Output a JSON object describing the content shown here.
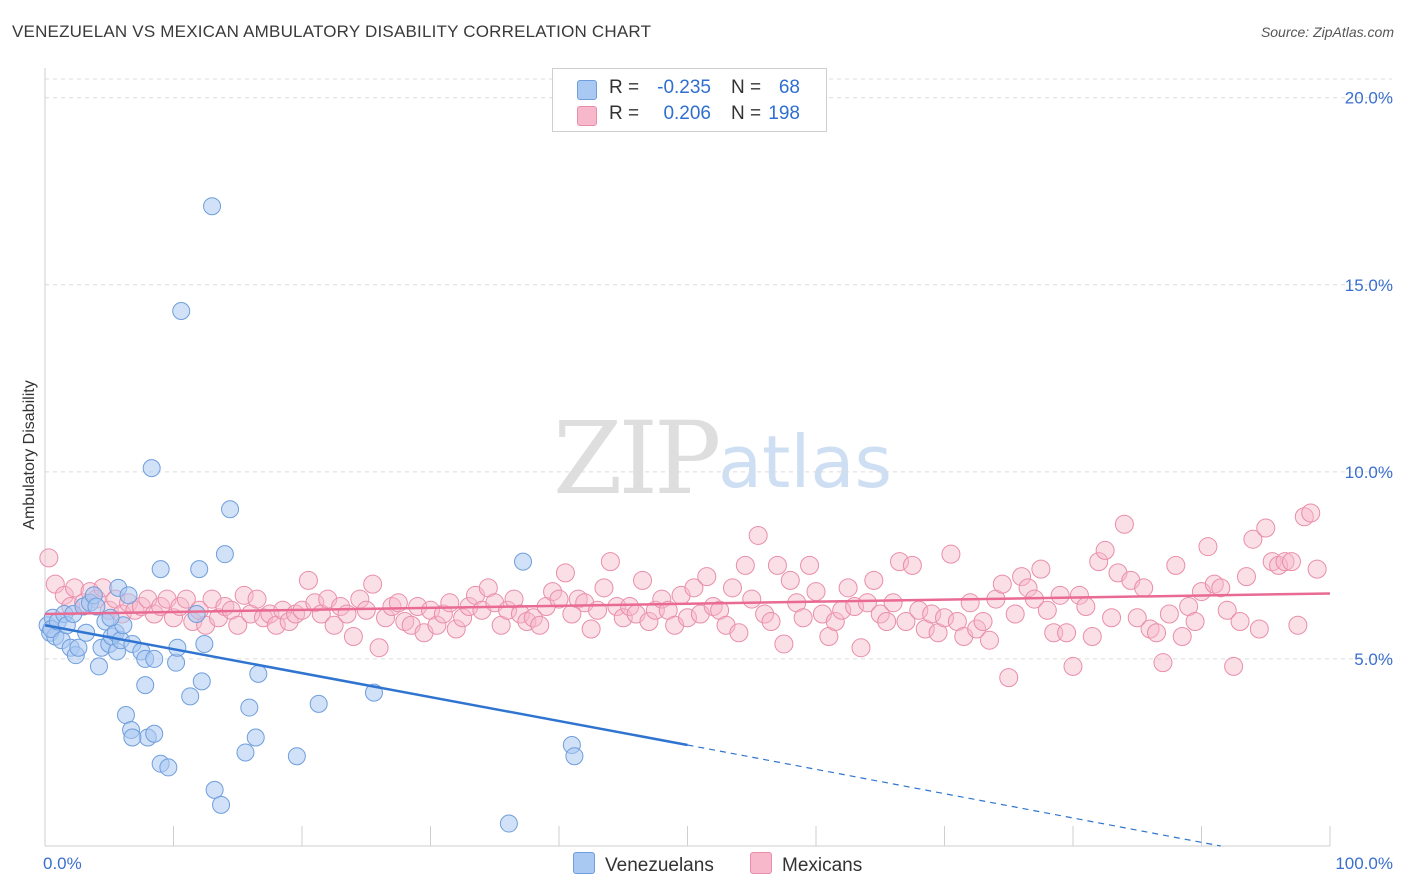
{
  "header": {
    "title": "VENEZUELAN VS MEXICAN AMBULATORY DISABILITY CORRELATION CHART",
    "source": "Source: ZipAtlas.com"
  },
  "watermark": {
    "zip": "ZIP",
    "atlas": "atlas"
  },
  "legend": {
    "rows": [
      {
        "r_label": "R =",
        "r_value": "-0.235",
        "n_label": "N =",
        "n_value": "68",
        "color": "#a9c8f2"
      },
      {
        "r_label": "R =",
        "r_value": "0.206",
        "n_label": "N =",
        "n_value": "198",
        "color": "#f6b8ca"
      }
    ]
  },
  "bottom_legend": {
    "venezuelans": "Venezuelans",
    "mexicans": "Mexicans"
  },
  "colors": {
    "venezuelan_fill": "#a9c8f2",
    "venezuelan_stroke": "#6f9edc",
    "venezuelan_line": "#2f74d0",
    "mexican_fill": "#f6b8ca",
    "mexican_stroke": "#e98eaa",
    "mexican_line": "#e96b93",
    "grid": "#dcdcdc",
    "axis_label": "#3a6fcf"
  },
  "chart_data": {
    "type": "scatter",
    "title": "VENEZUELAN VS MEXICAN AMBULATORY DISABILITY CORRELATION CHART",
    "xlabel": "",
    "ylabel": "Ambulatory Disability",
    "xlim": [
      0,
      100
    ],
    "ylim": [
      0,
      20.5
    ],
    "x_tick_labels": [
      "0.0%",
      "100.0%"
    ],
    "y_ticks": [
      5,
      10,
      15,
      20
    ],
    "y_tick_labels": [
      "5.0%",
      "10.0%",
      "15.0%",
      "20.0%"
    ],
    "grid": true,
    "series": [
      {
        "name": "Venezuelans",
        "r": -0.235,
        "n": 68,
        "trend": {
          "x0": 0,
          "y0": 5.9,
          "x1": 50,
          "y1": 2.7,
          "dashed_to_x": 91.5,
          "dashed_to_y": 0.0
        },
        "points": [
          [
            0.2,
            5.9
          ],
          [
            0.4,
            5.7
          ],
          [
            0.6,
            6.1
          ],
          [
            0.8,
            5.6
          ],
          [
            0.5,
            5.8
          ],
          [
            1.0,
            6.0
          ],
          [
            1.3,
            5.5
          ],
          [
            1.5,
            6.2
          ],
          [
            1.7,
            5.9
          ],
          [
            2.0,
            5.3
          ],
          [
            2.2,
            6.2
          ],
          [
            2.4,
            5.1
          ],
          [
            2.6,
            5.3
          ],
          [
            3.0,
            6.4
          ],
          [
            3.2,
            5.7
          ],
          [
            3.5,
            6.5
          ],
          [
            3.8,
            6.7
          ],
          [
            4.0,
            6.4
          ],
          [
            4.2,
            4.8
          ],
          [
            4.4,
            5.3
          ],
          [
            4.7,
            6.0
          ],
          [
            5.0,
            5.4
          ],
          [
            5.2,
            5.6
          ],
          [
            5.5,
            5.7
          ],
          [
            5.6,
            5.2
          ],
          [
            5.7,
            6.9
          ],
          [
            5.9,
            5.5
          ],
          [
            6.1,
            5.9
          ],
          [
            6.5,
            6.7
          ],
          [
            6.8,
            5.4
          ],
          [
            7.5,
            5.2
          ],
          [
            7.8,
            4.3
          ],
          [
            7.8,
            5.0
          ],
          [
            8.0,
            2.9
          ],
          [
            8.3,
            10.1
          ],
          [
            8.5,
            3.0
          ],
          [
            8.5,
            5.0
          ],
          [
            9.0,
            2.2
          ],
          [
            9.0,
            7.4
          ],
          [
            9.6,
            2.1
          ],
          [
            10.2,
            4.9
          ],
          [
            10.3,
            5.3
          ],
          [
            10.6,
            14.3
          ],
          [
            11.3,
            4.0
          ],
          [
            11.8,
            6.2
          ],
          [
            12.0,
            7.4
          ],
          [
            12.2,
            4.4
          ],
          [
            12.4,
            5.4
          ],
          [
            13.0,
            17.1
          ],
          [
            13.2,
            1.5
          ],
          [
            13.7,
            1.1
          ],
          [
            14.0,
            7.8
          ],
          [
            14.4,
            9.0
          ],
          [
            15.6,
            2.5
          ],
          [
            15.9,
            3.7
          ],
          [
            16.4,
            2.9
          ],
          [
            16.6,
            4.6
          ],
          [
            19.6,
            2.4
          ],
          [
            21.3,
            3.8
          ],
          [
            25.6,
            4.1
          ],
          [
            36.1,
            0.6
          ],
          [
            37.2,
            7.6
          ],
          [
            41.0,
            2.7
          ],
          [
            41.2,
            2.4
          ],
          [
            6.3,
            3.5
          ],
          [
            6.7,
            3.1
          ],
          [
            6.8,
            2.9
          ],
          [
            5.1,
            6.1
          ]
        ]
      },
      {
        "name": "Mexicans",
        "r": 0.206,
        "n": 198,
        "trend": {
          "x0": 0,
          "y0": 6.2,
          "x1": 100,
          "y1": 6.75
        },
        "points": [
          [
            0.3,
            7.7
          ],
          [
            0.8,
            7.0
          ],
          [
            1.5,
            6.7
          ],
          [
            2.0,
            6.4
          ],
          [
            2.3,
            6.9
          ],
          [
            3.0,
            6.5
          ],
          [
            3.5,
            6.8
          ],
          [
            4.0,
            6.6
          ],
          [
            4.5,
            6.9
          ],
          [
            5.0,
            6.3
          ],
          [
            5.5,
            6.6
          ],
          [
            6.0,
            6.2
          ],
          [
            6.5,
            6.5
          ],
          [
            7.0,
            6.3
          ],
          [
            7.5,
            6.4
          ],
          [
            8.0,
            6.6
          ],
          [
            8.5,
            6.2
          ],
          [
            9.0,
            6.4
          ],
          [
            9.5,
            6.6
          ],
          [
            10.0,
            6.1
          ],
          [
            10.5,
            6.4
          ],
          [
            11.0,
            6.6
          ],
          [
            11.5,
            6.0
          ],
          [
            12.0,
            6.3
          ],
          [
            12.5,
            5.9
          ],
          [
            13.0,
            6.6
          ],
          [
            13.5,
            6.1
          ],
          [
            14.0,
            6.4
          ],
          [
            14.5,
            6.3
          ],
          [
            15.0,
            5.9
          ],
          [
            15.5,
            6.7
          ],
          [
            16.0,
            6.2
          ],
          [
            16.5,
            6.6
          ],
          [
            17.0,
            6.1
          ],
          [
            17.5,
            6.2
          ],
          [
            18.0,
            5.9
          ],
          [
            18.5,
            6.3
          ],
          [
            19.0,
            6.0
          ],
          [
            19.5,
            6.2
          ],
          [
            20.0,
            6.3
          ],
          [
            20.5,
            7.1
          ],
          [
            21.0,
            6.5
          ],
          [
            21.5,
            6.2
          ],
          [
            22.0,
            6.6
          ],
          [
            22.5,
            5.9
          ],
          [
            23.0,
            6.4
          ],
          [
            23.5,
            6.2
          ],
          [
            24.0,
            5.6
          ],
          [
            24.5,
            6.6
          ],
          [
            25.0,
            6.3
          ],
          [
            25.5,
            7.0
          ],
          [
            26.0,
            5.3
          ],
          [
            26.5,
            6.1
          ],
          [
            27.0,
            6.4
          ],
          [
            27.5,
            6.5
          ],
          [
            28.0,
            6.0
          ],
          [
            28.5,
            5.9
          ],
          [
            29.0,
            6.4
          ],
          [
            29.5,
            5.7
          ],
          [
            30.0,
            6.3
          ],
          [
            30.5,
            5.9
          ],
          [
            31.0,
            6.2
          ],
          [
            31.5,
            6.5
          ],
          [
            32.0,
            5.8
          ],
          [
            32.5,
            6.1
          ],
          [
            33.0,
            6.4
          ],
          [
            33.5,
            6.7
          ],
          [
            34.0,
            6.3
          ],
          [
            34.5,
            6.9
          ],
          [
            35.0,
            6.5
          ],
          [
            35.5,
            5.9
          ],
          [
            36.0,
            6.3
          ],
          [
            36.5,
            6.6
          ],
          [
            37.0,
            6.2
          ],
          [
            37.5,
            6.0
          ],
          [
            38.0,
            6.1
          ],
          [
            38.5,
            5.9
          ],
          [
            39.0,
            6.4
          ],
          [
            39.5,
            6.8
          ],
          [
            40.0,
            6.6
          ],
          [
            40.5,
            7.3
          ],
          [
            41.0,
            6.2
          ],
          [
            41.5,
            6.6
          ],
          [
            42.0,
            6.5
          ],
          [
            42.5,
            5.8
          ],
          [
            43.0,
            6.3
          ],
          [
            43.5,
            6.9
          ],
          [
            44.0,
            7.6
          ],
          [
            44.5,
            6.4
          ],
          [
            45.0,
            6.1
          ],
          [
            45.5,
            6.4
          ],
          [
            46.0,
            6.2
          ],
          [
            46.5,
            7.1
          ],
          [
            47.0,
            6.0
          ],
          [
            47.5,
            6.3
          ],
          [
            48.0,
            6.6
          ],
          [
            48.5,
            6.3
          ],
          [
            49.0,
            5.9
          ],
          [
            49.5,
            6.7
          ],
          [
            50.0,
            6.1
          ],
          [
            50.5,
            6.9
          ],
          [
            51.0,
            6.2
          ],
          [
            51.5,
            7.2
          ],
          [
            52.0,
            6.4
          ],
          [
            52.5,
            6.3
          ],
          [
            53.0,
            5.9
          ],
          [
            53.5,
            6.9
          ],
          [
            54.0,
            5.7
          ],
          [
            54.5,
            7.5
          ],
          [
            55.0,
            6.6
          ],
          [
            55.5,
            8.3
          ],
          [
            56.0,
            6.2
          ],
          [
            56.5,
            6.0
          ],
          [
            57.0,
            7.5
          ],
          [
            57.5,
            5.4
          ],
          [
            58.0,
            7.1
          ],
          [
            58.5,
            6.5
          ],
          [
            59.0,
            6.1
          ],
          [
            59.5,
            7.5
          ],
          [
            60.0,
            6.8
          ],
          [
            60.5,
            6.2
          ],
          [
            61.0,
            5.6
          ],
          [
            61.5,
            6.0
          ],
          [
            62.0,
            6.3
          ],
          [
            62.5,
            6.9
          ],
          [
            63.0,
            6.4
          ],
          [
            63.5,
            5.3
          ],
          [
            64.0,
            6.5
          ],
          [
            64.5,
            7.1
          ],
          [
            65.0,
            6.2
          ],
          [
            65.5,
            6.0
          ],
          [
            66.0,
            6.5
          ],
          [
            66.5,
            7.6
          ],
          [
            67.0,
            6.0
          ],
          [
            67.5,
            7.5
          ],
          [
            68.0,
            6.3
          ],
          [
            68.5,
            5.8
          ],
          [
            69.0,
            6.2
          ],
          [
            69.5,
            5.7
          ],
          [
            70.0,
            6.1
          ],
          [
            70.5,
            7.8
          ],
          [
            71.0,
            6.0
          ],
          [
            71.5,
            5.6
          ],
          [
            72.0,
            6.5
          ],
          [
            72.5,
            5.8
          ],
          [
            73.0,
            6.0
          ],
          [
            73.5,
            5.5
          ],
          [
            74.0,
            6.6
          ],
          [
            74.5,
            7.0
          ],
          [
            75.0,
            4.5
          ],
          [
            75.5,
            6.2
          ],
          [
            76.0,
            7.2
          ],
          [
            76.5,
            6.9
          ],
          [
            77.0,
            6.6
          ],
          [
            77.5,
            7.4
          ],
          [
            78.0,
            6.3
          ],
          [
            78.5,
            5.7
          ],
          [
            79.0,
            6.7
          ],
          [
            79.5,
            5.7
          ],
          [
            80.0,
            4.8
          ],
          [
            80.5,
            6.7
          ],
          [
            81.0,
            6.4
          ],
          [
            81.5,
            5.6
          ],
          [
            82.0,
            7.6
          ],
          [
            82.5,
            7.9
          ],
          [
            83.0,
            6.1
          ],
          [
            83.5,
            7.3
          ],
          [
            84.0,
            8.6
          ],
          [
            84.5,
            7.1
          ],
          [
            85.0,
            6.1
          ],
          [
            85.5,
            6.9
          ],
          [
            86.0,
            5.8
          ],
          [
            86.5,
            5.7
          ],
          [
            87.0,
            4.9
          ],
          [
            87.5,
            6.2
          ],
          [
            88.0,
            7.5
          ],
          [
            88.5,
            5.6
          ],
          [
            89.0,
            6.4
          ],
          [
            89.5,
            6.0
          ],
          [
            90.0,
            6.8
          ],
          [
            90.5,
            8.0
          ],
          [
            91.0,
            7.0
          ],
          [
            91.5,
            6.9
          ],
          [
            92.0,
            6.3
          ],
          [
            92.5,
            4.8
          ],
          [
            93.0,
            6.0
          ],
          [
            93.5,
            7.2
          ],
          [
            94.0,
            8.2
          ],
          [
            94.5,
            5.8
          ],
          [
            95.0,
            8.5
          ],
          [
            95.5,
            7.6
          ],
          [
            96.0,
            7.5
          ],
          [
            96.5,
            7.6
          ],
          [
            97.0,
            7.6
          ],
          [
            97.5,
            5.9
          ],
          [
            98.0,
            8.8
          ],
          [
            98.5,
            8.9
          ],
          [
            99.0,
            7.4
          ]
        ]
      }
    ]
  }
}
